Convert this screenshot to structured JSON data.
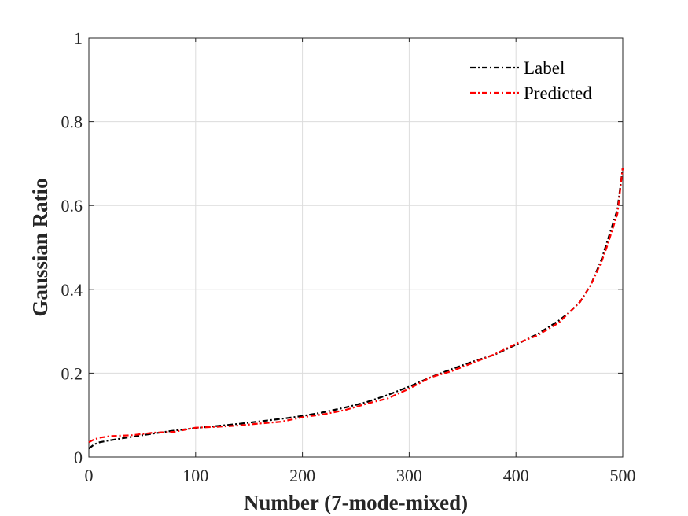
{
  "chart_data": {
    "type": "line",
    "title": "",
    "xlabel": "Number (7-mode-mixed)",
    "ylabel": "Gaussian Ratio",
    "xlim": [
      0,
      500
    ],
    "ylim": [
      0,
      1
    ],
    "xticks": [
      0,
      100,
      200,
      300,
      400,
      500
    ],
    "yticks": [
      0,
      0.2,
      0.4,
      0.6,
      0.8,
      1
    ],
    "xtick_labels": [
      "0",
      "100",
      "200",
      "300",
      "400",
      "500"
    ],
    "ytick_labels": [
      "0",
      "0.2",
      "0.4",
      "0.6",
      "0.8",
      "1"
    ],
    "grid": true,
    "legend_position": "top-right",
    "series": [
      {
        "name": "Label",
        "color": "#000000",
        "style": "dash-dot",
        "x": [
          0,
          5,
          10,
          20,
          40,
          60,
          80,
          100,
          120,
          140,
          160,
          180,
          200,
          220,
          240,
          260,
          280,
          300,
          320,
          340,
          360,
          380,
          400,
          420,
          440,
          450,
          460,
          470,
          480,
          485,
          490,
          495,
          500
        ],
        "y": [
          0.02,
          0.03,
          0.035,
          0.04,
          0.048,
          0.056,
          0.063,
          0.069,
          0.074,
          0.079,
          0.085,
          0.091,
          0.098,
          0.107,
          0.118,
          0.131,
          0.148,
          0.168,
          0.19,
          0.21,
          0.228,
          0.244,
          0.268,
          0.293,
          0.325,
          0.345,
          0.37,
          0.41,
          0.47,
          0.51,
          0.55,
          0.59,
          0.69
        ]
      },
      {
        "name": "Predicted",
        "color": "#ff0000",
        "style": "dash-dot",
        "x": [
          0,
          5,
          10,
          20,
          40,
          60,
          80,
          100,
          120,
          140,
          160,
          180,
          200,
          220,
          240,
          260,
          280,
          300,
          320,
          340,
          360,
          380,
          400,
          420,
          440,
          450,
          460,
          470,
          480,
          485,
          490,
          495,
          500
        ],
        "y": [
          0.035,
          0.042,
          0.046,
          0.05,
          0.052,
          0.058,
          0.06,
          0.07,
          0.072,
          0.075,
          0.08,
          0.084,
          0.095,
          0.102,
          0.112,
          0.127,
          0.14,
          0.163,
          0.19,
          0.205,
          0.225,
          0.245,
          0.27,
          0.29,
          0.32,
          0.345,
          0.37,
          0.41,
          0.465,
          0.5,
          0.54,
          0.58,
          0.69
        ]
      }
    ]
  }
}
